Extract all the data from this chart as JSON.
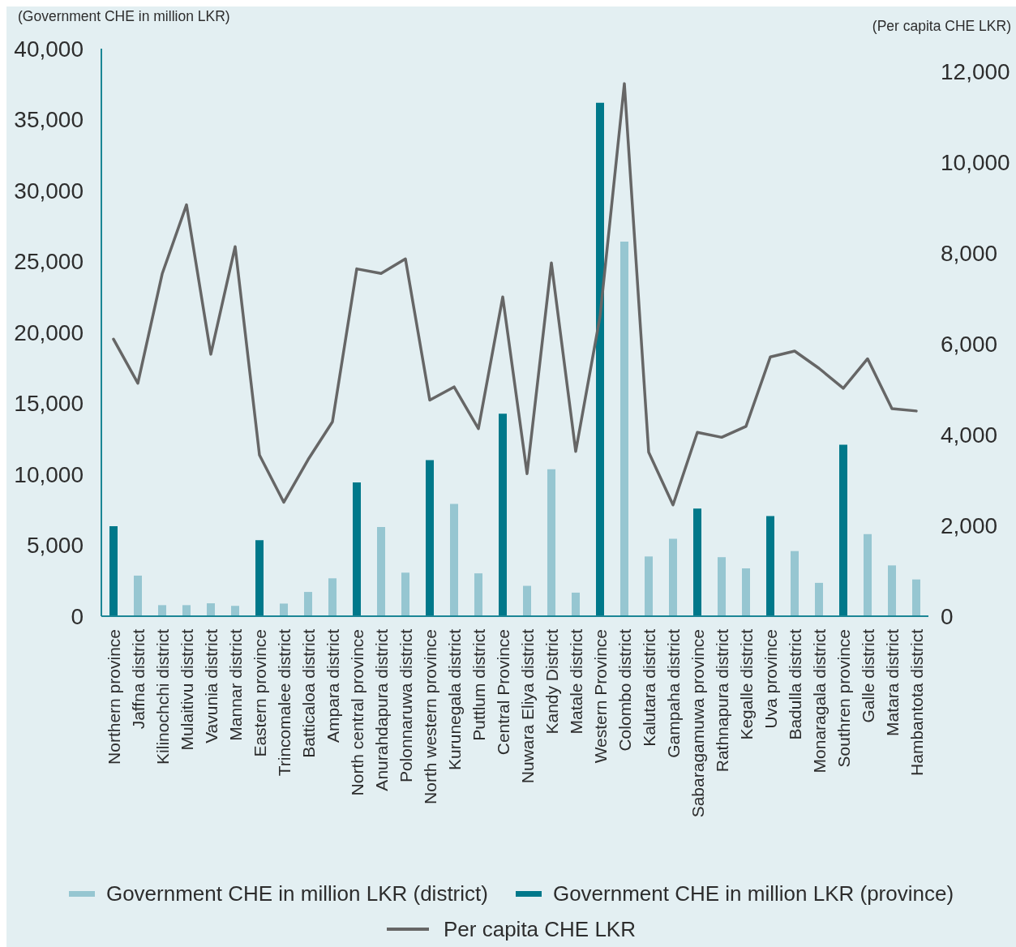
{
  "chart_data": {
    "type": "bar",
    "ylabel": "(Government CHE in million LKR)",
    "y2label": "(Per capita CHE LKR)",
    "categories": [
      "Northern province",
      "Jaffna district",
      "Kilinochchi district",
      "Mulaitivu district",
      "Vavunia district",
      "Mannar district",
      "Eastern province",
      "Trincomalee district",
      "Batticaloa district",
      "Ampara district",
      "North central province",
      "Anurahdapura district",
      "Polonnaruwa district",
      "North western province",
      "Kurunegala district",
      "Puttlum district",
      "Central Province",
      "Nuwara Eliya district",
      "Kandy District",
      "Matale district",
      "Western Province",
      "Colombo district",
      "Kalutara district",
      "Gampaha district",
      "Sabaragamuwa province",
      "Rathnapura district",
      "Kegalle district",
      "Uva province",
      "Badulla district",
      "Monaragala district",
      "Southren province",
      "Galle district",
      "Matara district",
      "Hambantota district"
    ],
    "series": [
      {
        "name": "Government CHE in million LKR (district)",
        "color": "#96c6d1",
        "values": [
          null,
          2860,
          780,
          780,
          910,
          730,
          null,
          890,
          1710,
          2670,
          null,
          6290,
          3070,
          null,
          7910,
          3020,
          null,
          2140,
          10360,
          1660,
          null,
          26400,
          4210,
          5460,
          null,
          4160,
          3370,
          null,
          4590,
          2350,
          null,
          5780,
          3580,
          2590
        ]
      },
      {
        "name": "Government CHE in million LKR (province)",
        "color": "#00788a",
        "values": [
          6340,
          null,
          null,
          null,
          null,
          null,
          5360,
          null,
          null,
          null,
          9430,
          null,
          null,
          11000,
          null,
          null,
          14270,
          null,
          null,
          null,
          36190,
          null,
          null,
          null,
          7590,
          null,
          null,
          7060,
          null,
          null,
          12090,
          null,
          null,
          null
        ]
      },
      {
        "name": "Per capita CHE LKR",
        "type": "line",
        "color": "#666666",
        "axis": "y2",
        "values": [
          6100,
          5130,
          7540,
          9060,
          5770,
          8140,
          3550,
          2510,
          3450,
          4280,
          7650,
          7550,
          7870,
          4760,
          5050,
          4130,
          7030,
          3140,
          7780,
          3630,
          6600,
          11730,
          3610,
          2450,
          4050,
          3940,
          4180,
          5710,
          5840,
          5460,
          5020,
          5670,
          4570,
          4520
        ]
      }
    ],
    "ylim": [
      0,
      40000
    ],
    "yticks": [
      {
        "value": 0,
        "label": "0"
      },
      {
        "value": 5000,
        "label": "5,000"
      },
      {
        "value": 10000,
        "label": "10,000"
      },
      {
        "value": 15000,
        "label": "15,000"
      },
      {
        "value": 20000,
        "label": "20,000"
      },
      {
        "value": 25000,
        "label": "25,000"
      },
      {
        "value": 30000,
        "label": "30,000"
      },
      {
        "value": 35000,
        "label": "35,000"
      },
      {
        "value": 40000,
        "label": "40,000"
      }
    ],
    "y2lim": [
      0,
      12500
    ],
    "y2ticks": [
      {
        "value": 0,
        "label": "0"
      },
      {
        "value": 2000,
        "label": "2,000"
      },
      {
        "value": 4000,
        "label": "4,000"
      },
      {
        "value": 6000,
        "label": "6,000"
      },
      {
        "value": 8000,
        "label": "8,000"
      },
      {
        "value": 10000,
        "label": "10,000"
      },
      {
        "value": 12000,
        "label": "12,000"
      }
    ],
    "legend": "bottom"
  }
}
